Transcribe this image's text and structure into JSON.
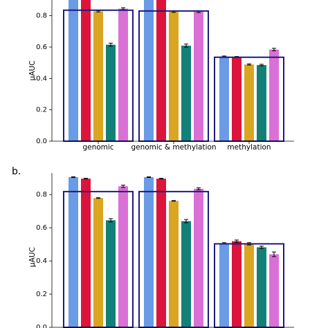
{
  "chart_data": [
    {
      "type": "bar",
      "ylabel": "μAUC",
      "categories": [
        "genomic",
        "genomic & methylation",
        "methylation"
      ],
      "ylim": [
        0,
        0.9
      ],
      "yticks": [
        {
          "value": 0,
          "label": "0.0"
        },
        0.2,
        0.4,
        0.6,
        0.8
      ],
      "box_values": [
        0.835,
        0.83,
        0.535
      ],
      "box_color": "#1a1a80",
      "series": [
        {
          "color": "#6a9be6",
          "values": [
            0.93,
            0.93,
            0.54
          ],
          "errors": [
            0.004,
            0.004,
            0.003
          ]
        },
        {
          "color": "#dc143c",
          "values": [
            0.93,
            0.93,
            0.537
          ],
          "errors": [
            0.004,
            0.004,
            0.003
          ]
        },
        {
          "color": "#daa520",
          "values": [
            0.828,
            0.825,
            0.489
          ],
          "errors": [
            0.004,
            0.004,
            0.004
          ]
        },
        {
          "color": "#138078",
          "values": [
            0.615,
            0.609,
            0.485
          ],
          "errors": [
            0.01,
            0.01,
            0.005
          ]
        },
        {
          "color": "#da70d6",
          "values": [
            0.845,
            0.826,
            0.584
          ],
          "errors": [
            0.006,
            0.006,
            0.008
          ]
        }
      ]
    },
    {
      "type": "bar",
      "panel_label": "b.",
      "ylabel": "μAUC",
      "categories": [
        null,
        null,
        null
      ],
      "ylim": [
        0,
        0.93
      ],
      "yticks": [
        {
          "value": 0,
          "label": "0.0"
        },
        0.2,
        0.4,
        0.6,
        0.8
      ],
      "box_values": [
        0.818,
        0.818,
        0.503
      ],
      "box_color": "#1a1a80",
      "series": [
        {
          "color": "#6a9be6",
          "values": [
            0.905,
            0.905,
            0.507
          ],
          "errors": [
            0.002,
            0.002,
            0.003
          ]
        },
        {
          "color": "#dc143c",
          "values": [
            0.896,
            0.896,
            0.519
          ],
          "errors": [
            0.002,
            0.002,
            0.007
          ]
        },
        {
          "color": "#daa520",
          "values": [
            0.779,
            0.762,
            0.503
          ],
          "errors": [
            0.002,
            0.002,
            0.007
          ]
        },
        {
          "color": "#138078",
          "values": [
            0.645,
            0.64,
            0.482
          ],
          "errors": [
            0.01,
            0.01,
            0.007
          ]
        },
        {
          "color": "#da70d6",
          "values": [
            0.85,
            0.835,
            0.44
          ],
          "errors": [
            0.007,
            0.006,
            0.014
          ]
        }
      ]
    }
  ]
}
